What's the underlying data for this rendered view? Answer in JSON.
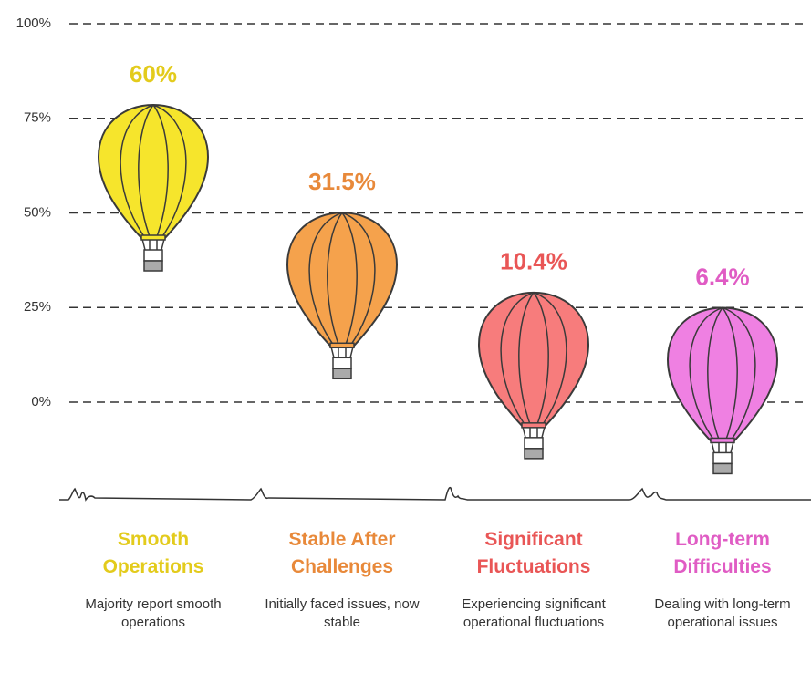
{
  "chart_data": {
    "type": "balloon",
    "categories": [
      "Smooth Operations",
      "Stable After Challenges",
      "Significant Fluctuations",
      "Long-term Difficulties"
    ],
    "descriptions": [
      "Majority report smooth operations",
      "Initially faced issues, now stable",
      "Experiencing significant operational fluctuations",
      "Dealing with long-term operational issues"
    ],
    "values": [
      60,
      31.5,
      10.4,
      6.4
    ],
    "value_labels": [
      "60%",
      "31.5%",
      "10.4%",
      "6.4%"
    ],
    "colors": [
      "#e3cb1c",
      "#e8893a",
      "#e95656",
      "#e05cc4"
    ],
    "fills": [
      "#f6e52c",
      "#f5a24c",
      "#f77c7c",
      "#ef80e2"
    ],
    "ylim": [
      0,
      100
    ],
    "yticks": [
      {
        "value": 0,
        "label": "0%"
      },
      {
        "value": 25,
        "label": "25%"
      },
      {
        "value": 50,
        "label": "50%"
      },
      {
        "value": 75,
        "label": "75%"
      },
      {
        "value": 100,
        "label": "100%"
      }
    ],
    "grid": true
  }
}
